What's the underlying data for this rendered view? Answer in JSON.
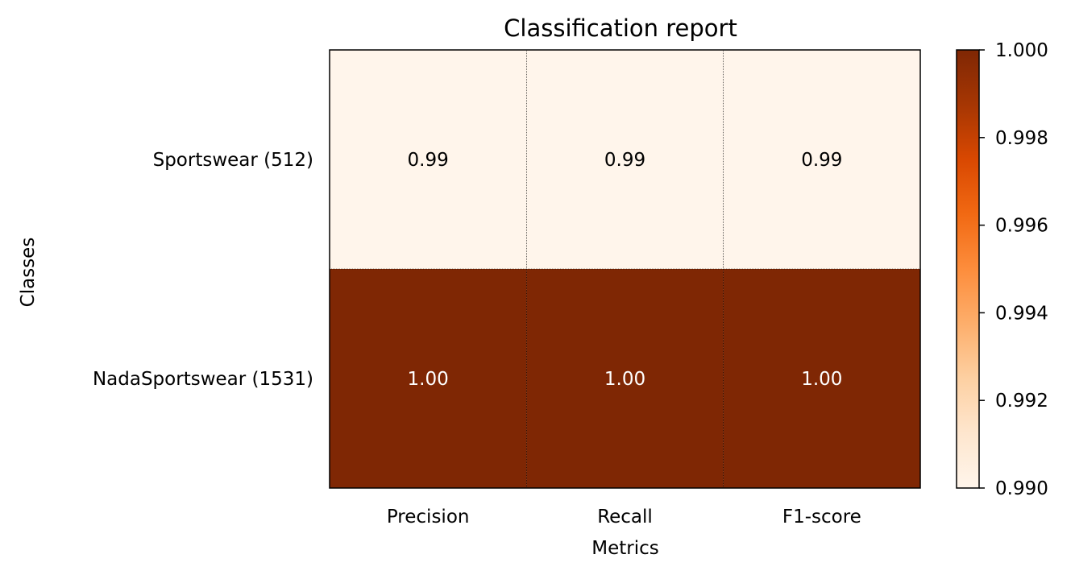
{
  "chart_data": {
    "type": "heatmap",
    "title": "Classification report",
    "xlabel": "Metrics",
    "ylabel": "Classes",
    "x_categories": [
      "Precision",
      "Recall",
      "F1-score"
    ],
    "y_categories": [
      "Sportswear (512)",
      "NadaSportswear (1531)"
    ],
    "values": [
      [
        0.99,
        0.99,
        0.99
      ],
      [
        1.0,
        1.0,
        1.0
      ]
    ],
    "cell_labels": [
      [
        "0.99",
        "0.99",
        "0.99"
      ],
      [
        "1.00",
        "1.00",
        "1.00"
      ]
    ],
    "colormap": "Oranges",
    "low_color": "#fff5eb",
    "high_color": "#7f2704",
    "label_color_light": "#ffffff",
    "label_color_dark": "#000000",
    "colorbar": {
      "range": [
        0.99,
        1.0
      ],
      "ticks": [
        0.99,
        0.992,
        0.994,
        0.996,
        0.998,
        1.0
      ],
      "tick_labels": [
        "0.990",
        "0.992",
        "0.994",
        "0.996",
        "0.998",
        "1.000"
      ]
    }
  }
}
